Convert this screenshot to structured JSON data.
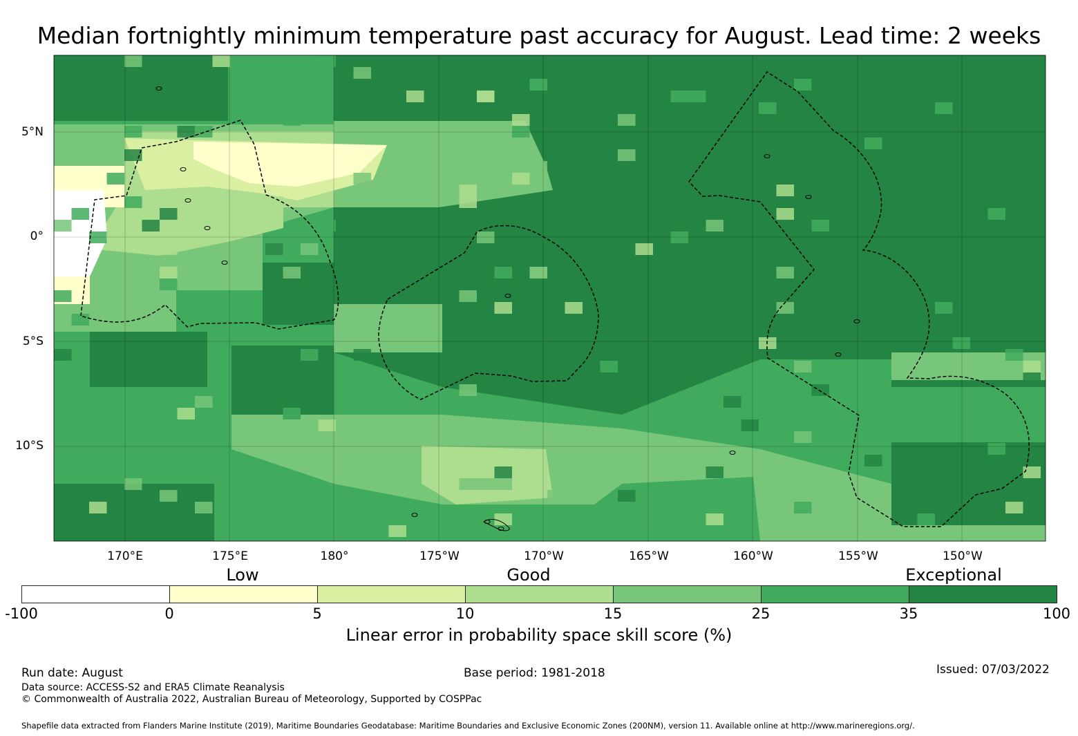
{
  "title": "Median fortnightly minimum temperature past accuracy for August. Lead time: 2 weeks",
  "map": {
    "lat_labels": [
      "5°N",
      "0°",
      "5°S",
      "10°S"
    ],
    "lon_labels": [
      "170°E",
      "175°E",
      "180°",
      "175°W",
      "170°W",
      "165°W",
      "160°W",
      "155°W",
      "150°W"
    ],
    "extent": {
      "lon_min": 166.6,
      "lon_max": 213.9,
      "lat_max": 8.7,
      "lat_min": -14.5
    },
    "dominant_colors": {
      "exceptional": "#238443",
      "good_high": "#41ab5d",
      "good_mid": "#78c679",
      "good_low": "#addd8e",
      "low_high": "#d9f0a3",
      "low": "#ffffcc",
      "negative": "#ffffff"
    },
    "boundary_style": "dashed black EEZ outlines",
    "category_labels": {
      "low": "Low",
      "good": "Good",
      "exceptional": "Exceptional"
    }
  },
  "legend": {
    "ticks": [
      "-100",
      "0",
      "5",
      "10",
      "15",
      "25",
      "35",
      "100"
    ],
    "colors": [
      "#ffffff",
      "#ffffcc",
      "#d9f0a3",
      "#addd8e",
      "#78c679",
      "#41ab5d",
      "#238443"
    ],
    "label": "Linear error in probability space skill score (%)"
  },
  "footer": {
    "run_date": "Run date: August",
    "base_period": "Base period: 1981-2018",
    "issued": "Issued: 07/03/2022",
    "data_source": "Data source: ACCESS-S2 and ERA5 Climate Reanalysis",
    "copyright": "© Commonwealth of Australia 2022, Australian Bureau of Meteorology, Supported by COSPPac",
    "shapefile": "Shapefile data extracted from Flanders Marine Institute (2019), Maritime Boundaries Geodatabase: Maritime Boundaries and Exclusive Economic Zones (200NM), version 11. Available online at http://www.marineregions.org/."
  }
}
